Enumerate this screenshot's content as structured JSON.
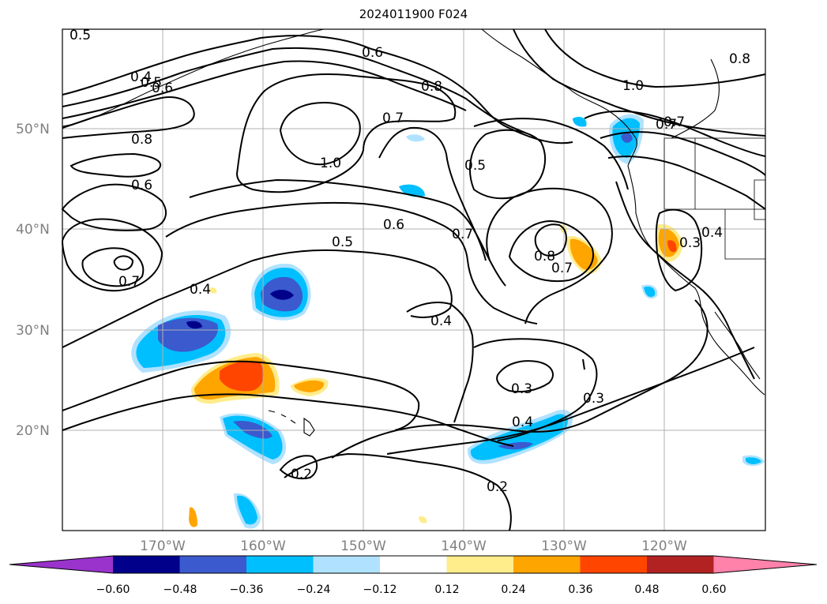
{
  "title": "2024011900 F024",
  "lat_labels": [
    "50°N",
    "40°N",
    "30°N",
    "20°N"
  ],
  "lon_labels": [
    "170°W",
    "160°W",
    "150°W",
    "140°W",
    "130°W",
    "120°W"
  ],
  "contour_labels": [
    "0.5",
    "0.4",
    "0.5",
    "0.6",
    "0.6",
    "0.8",
    "1.0",
    "0.7",
    "0.8",
    "0.6",
    "1.0",
    "0.5",
    "0.7",
    "0.8",
    "0.7",
    "0.6",
    "0.7",
    "0.5",
    "0.7",
    "0.4",
    "0.8",
    "0.7",
    "0.3",
    "0.4",
    "0.4",
    "0.3",
    "0.3",
    "0.4",
    "0.2",
    "0.2"
  ],
  "colorbar": {
    "tick_labels": [
      "−0.60",
      "−0.48",
      "−0.36",
      "−0.24",
      "−0.12",
      "0.12",
      "0.24",
      "0.36",
      "0.48",
      "0.60"
    ],
    "colors": [
      "#9933cc",
      "#00008b",
      "#3a5acd",
      "#00bfff",
      "#b0e2ff",
      "#ffffff",
      "#ffec8b",
      "#ffa500",
      "#ff4500",
      "#b22222",
      "#ff82ab"
    ]
  },
  "fill_colors": {
    "neg1": "#b0e2ff",
    "neg2": "#00bfff",
    "neg3": "#3a5acd",
    "neg4": "#00008b",
    "pos1": "#ffec8b",
    "pos2": "#ffa500",
    "pos3": "#ff4500"
  }
}
